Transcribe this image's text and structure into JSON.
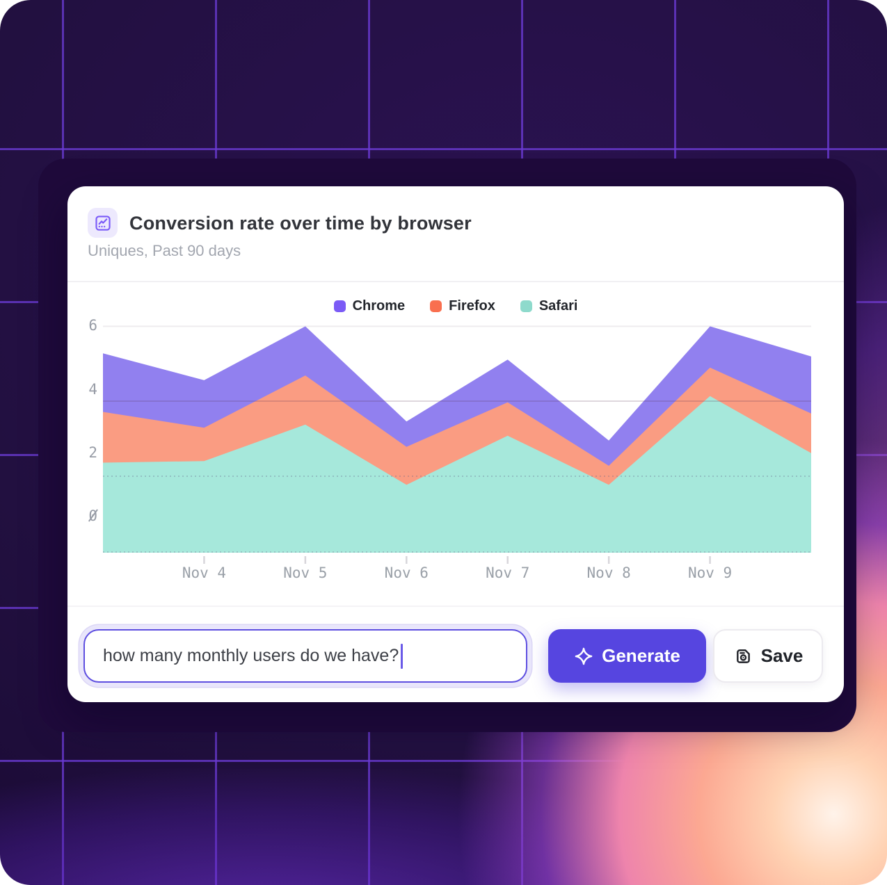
{
  "header": {
    "title": "Conversion rate over time by browser",
    "subtitle": "Uniques, Past 90 days",
    "icon": "line-chart-icon"
  },
  "legend": [
    {
      "label": "Chrome",
      "color": "#7B5BF6"
    },
    {
      "label": "Firefox",
      "color": "#F96F4F"
    },
    {
      "label": "Safari",
      "color": "#8EDACC"
    }
  ],
  "chart_data": {
    "type": "area",
    "stacked": true,
    "title": "Conversion rate over time by browser",
    "x_labels": [
      "",
      "Nov 4",
      "Nov 5",
      "Nov 6",
      "Nov 7",
      "Nov 8",
      "Nov 9",
      ""
    ],
    "y_ticks": [
      6,
      4,
      2,
      0
    ],
    "ylim": [
      -1.15,
      6.6
    ],
    "grid": "horizontal",
    "legend_position": "top-center",
    "series": [
      {
        "name": "Safari",
        "area_color": "#A6E8DB",
        "legend_color": "#8EDACC",
        "values": [
          1.7,
          1.75,
          2.9,
          1.0,
          2.55,
          1.0,
          3.8,
          2.0
        ]
      },
      {
        "name": "Firefox",
        "area_color": "#FA9C82",
        "legend_color": "#F96F4F",
        "values": [
          1.6,
          1.05,
          1.55,
          1.2,
          1.05,
          0.6,
          0.9,
          1.25
        ]
      },
      {
        "name": "Chrome",
        "area_color": "#9180EF",
        "legend_color": "#7B5BF6",
        "values": [
          1.85,
          1.5,
          1.55,
          0.8,
          1.35,
          0.8,
          1.3,
          1.8
        ]
      }
    ],
    "stacked_tops": {
      "safari": [
        1.7,
        1.75,
        2.9,
        1.0,
        2.55,
        1.0,
        3.8,
        2.0
      ],
      "firefox": [
        3.3,
        2.8,
        4.45,
        2.2,
        3.6,
        1.6,
        4.7,
        3.25
      ],
      "chrome": [
        5.15,
        4.3,
        6.0,
        3.0,
        4.95,
        2.4,
        6.0,
        5.05
      ]
    }
  },
  "composer": {
    "input_value": "how many monthly users do we have?",
    "generate_label": "Generate",
    "save_label": "Save"
  },
  "theme": {
    "accent": "#5645E0",
    "card_bg": "#FFFFFF",
    "background_dark": "#221040",
    "grid_line": "#6A3AD2",
    "glow_pink": "#F9A5A0",
    "axis_text": "#9AA0A8"
  }
}
